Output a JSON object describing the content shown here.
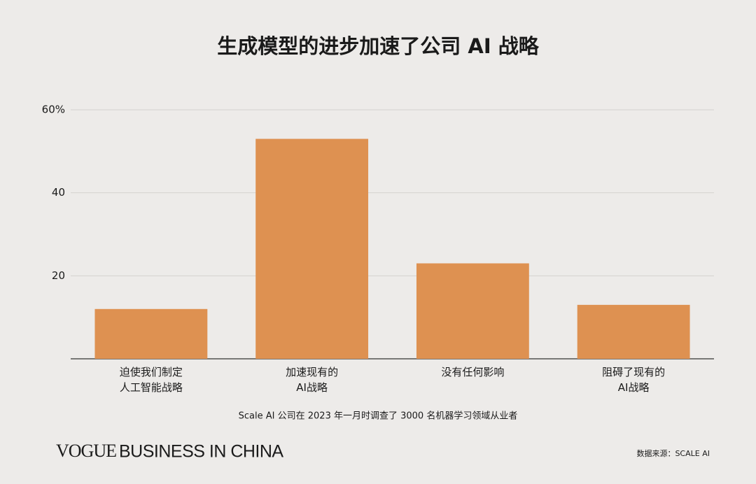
{
  "chart_data": {
    "type": "bar",
    "title": "生成模型的进步加速了公司 AI 战略",
    "categories": [
      "迫使我们制定\n人工智能战略",
      "加速现有的\nAI战略",
      "没有任何影响",
      "阻碍了现有的\nAI战略"
    ],
    "values": [
      12,
      53,
      23,
      13
    ],
    "color": "#de9151",
    "ylim": [
      0,
      60
    ],
    "yticks": [
      20,
      40,
      {
        "value": 60,
        "label": "60%"
      }
    ],
    "grid": true,
    "note": "Scale AI 公司在 2023 年一月时调查了 3000 名机器学习领域从业者",
    "brand_serif": "VOGUE",
    "brand_sans": "BUSINESS IN CHINA",
    "source": "数据来源：SCALE AI"
  }
}
